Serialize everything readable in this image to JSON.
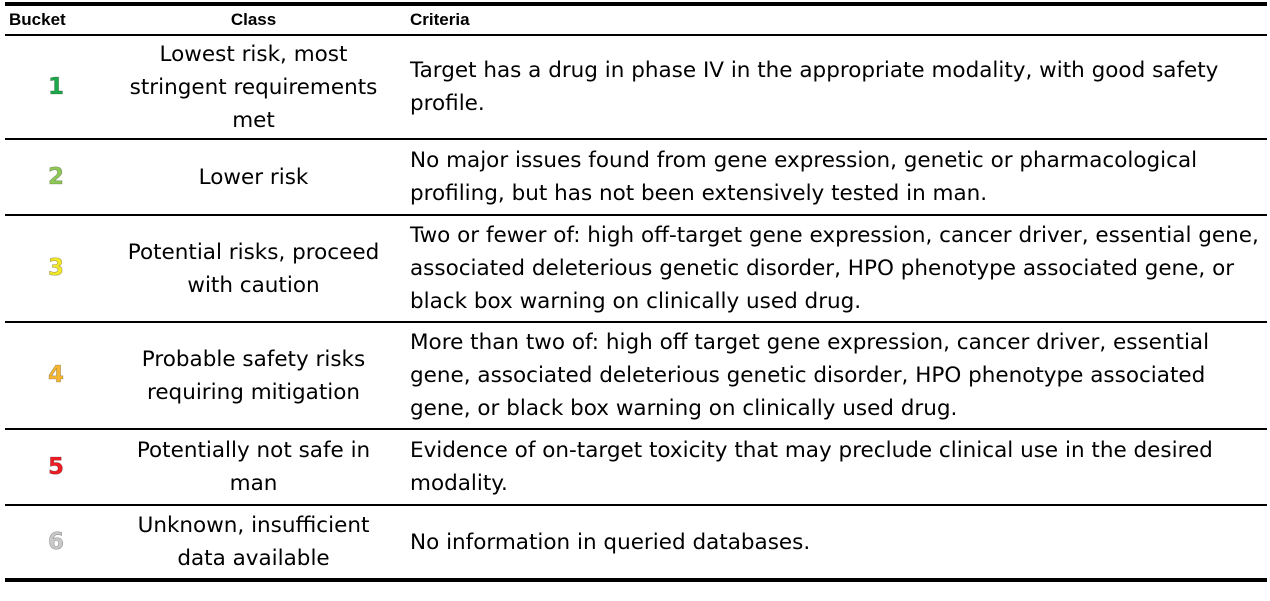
{
  "table": {
    "headers": {
      "bucket": "Bucket",
      "class": "Class",
      "criteria": "Criteria"
    },
    "rows": [
      {
        "bucket": "1",
        "bucket_color": "#1ea84a",
        "class": "Lowest risk, most stringent requirements met",
        "criteria": "Target has a drug in phase IV in the appropriate modality, with good safety profile."
      },
      {
        "bucket": "2",
        "bucket_color": "#8fc856",
        "class": "Lower risk",
        "criteria": "No major issues found from gene expression, genetic or pharmacological profiling, but has not been extensively tested in man."
      },
      {
        "bucket": "3",
        "bucket_color": "#f2e829",
        "class": "Potential risks, proceed with caution",
        "criteria": "Two or fewer of: high off-target gene expression, cancer driver, essential gene, associated deleterious genetic disorder, HPO phenotype associated gene, or black box warning on clinically used drug."
      },
      {
        "bucket": "4",
        "bucket_color": "#f5b731",
        "class": "Probable safety risks requiring mitigation",
        "criteria": "More than two of: high off target gene expression, cancer driver, essential gene, associated deleterious genetic disorder, HPO phenotype associated gene, or black box warning on clinically used drug."
      },
      {
        "bucket": "5",
        "bucket_color": "#ee1c24",
        "class": "Potentially not safe in man",
        "criteria": "Evidence of on-target toxicity that may preclude clinical use in the desired modality."
      },
      {
        "bucket": "6",
        "bucket_color": "#c9c9c9",
        "class": "Unknown, insufficient data available",
        "criteria": "No information in queried databases."
      }
    ]
  }
}
